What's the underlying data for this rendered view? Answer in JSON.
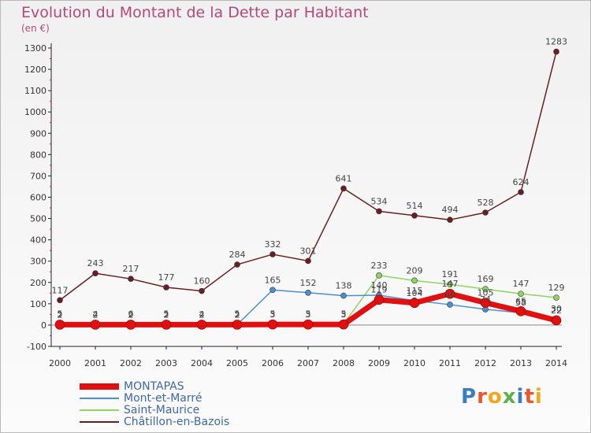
{
  "header": {
    "title": "Evolution du Montant de la Dette par Habitant",
    "unit": "(en €)"
  },
  "logo": {
    "text": "Proxiti",
    "colors": [
      "#3b7dc4",
      "#e8562a",
      "#f2a71b",
      "#5db14a",
      "#3b7dc4",
      "#e8562a",
      "#f2a71b"
    ]
  },
  "chart_data": {
    "type": "line",
    "x": [
      "2000",
      "2001",
      "2002",
      "2003",
      "2004",
      "2005",
      "2006",
      "2007",
      "2008",
      "2009",
      "2010",
      "2011",
      "2012",
      "2013",
      "2014"
    ],
    "ylim": [
      -100,
      1300
    ],
    "yticks": [
      -100,
      0,
      100,
      200,
      300,
      400,
      500,
      600,
      700,
      800,
      900,
      1000,
      1100,
      1200,
      1300
    ],
    "grid": false,
    "legend": "bottom-left",
    "series": [
      {
        "name": "MONTAPAS",
        "color": "#e01010",
        "values": [
          2,
          2,
          2,
          2,
          2,
          2,
          3,
          3,
          3,
          119,
          104,
          147,
          105,
          65,
          22
        ]
      },
      {
        "name": "Mont-et-Marré",
        "color": "#4a90d0",
        "values": [
          2,
          2,
          2,
          2,
          2,
          2,
          165,
          152,
          138,
          140,
          115,
          96,
          74,
          58,
          30
        ]
      },
      {
        "name": "Saint-Maurice",
        "color": "#8fd560",
        "values": [
          5,
          4,
          6,
          5,
          4,
          5,
          5,
          5,
          5,
          233,
          209,
          191,
          169,
          147,
          129
        ]
      },
      {
        "name": "Châtillon-en-Bazois",
        "color": "#6b1e22",
        "values": [
          117,
          243,
          217,
          177,
          160,
          284,
          332,
          301,
          641,
          534,
          514,
          494,
          528,
          624,
          1283
        ]
      }
    ]
  }
}
